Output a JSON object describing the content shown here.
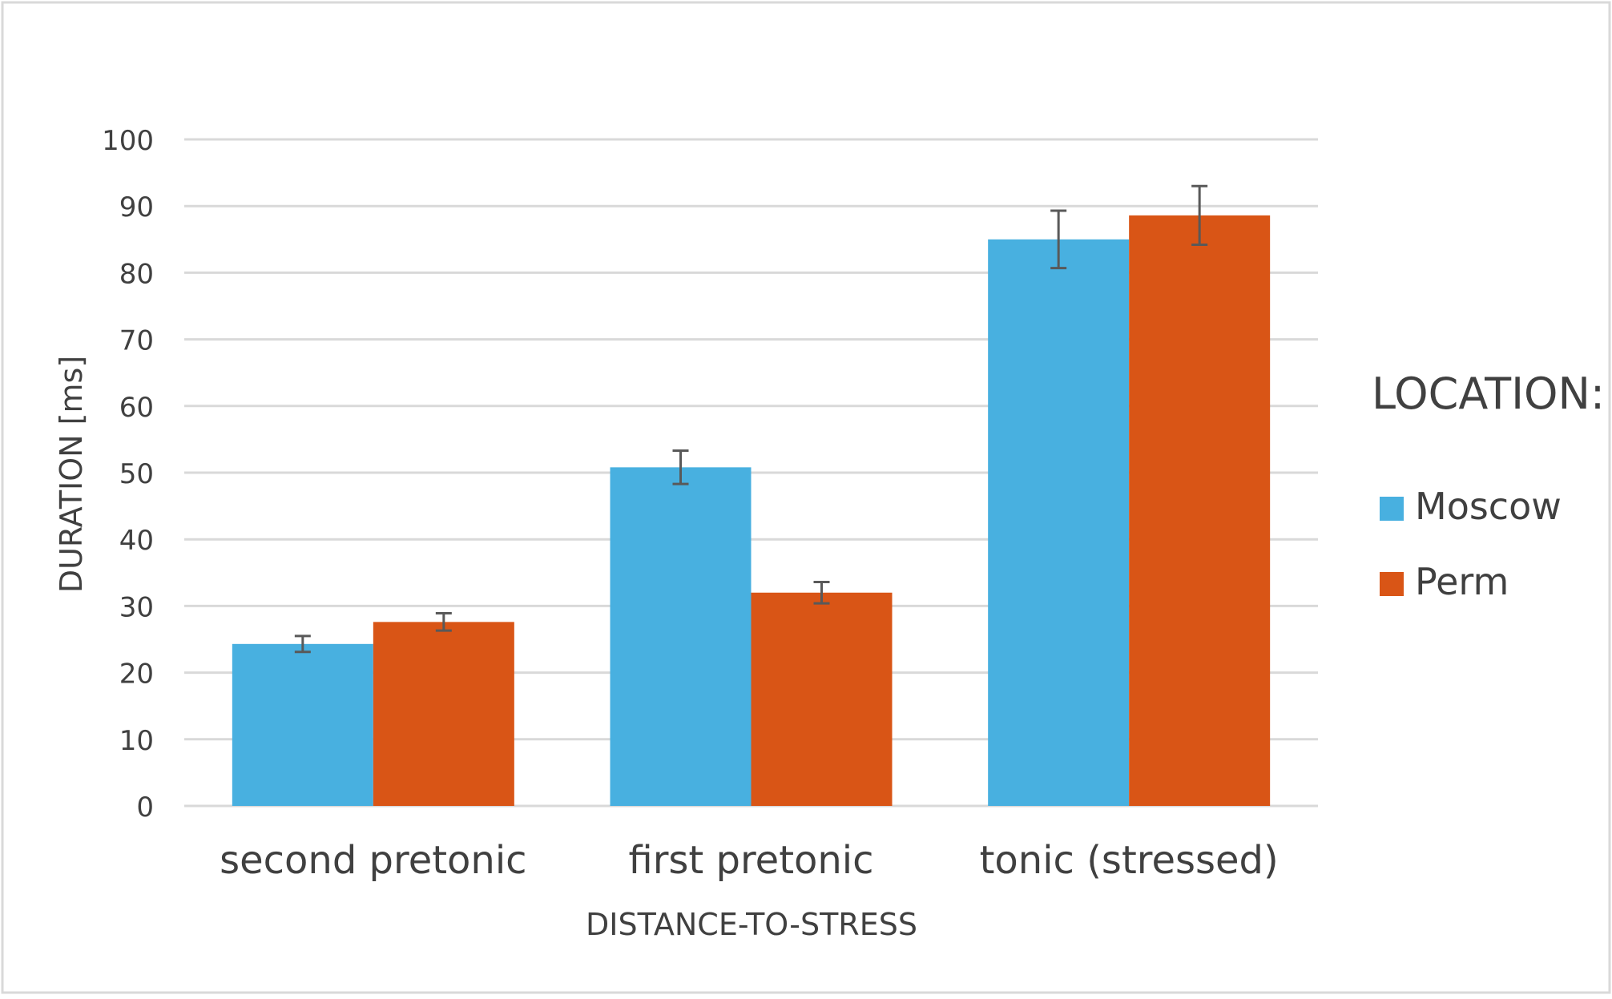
{
  "chart_data": {
    "type": "bar",
    "xlabel": "DISTANCE-TO-STRESS",
    "ylabel": "DURATION [ms]",
    "ylim": [
      0,
      100
    ],
    "yticks": [
      0,
      10,
      20,
      30,
      40,
      50,
      60,
      70,
      80,
      90,
      100
    ],
    "categories": [
      "second pretonic",
      "first pretonic",
      "tonic (stressed)"
    ],
    "grid": true,
    "legend": {
      "title": "LOCATION:",
      "position": "right"
    },
    "series": [
      {
        "name": "Moscow",
        "color": "#48b0e0",
        "values": [
          24.3,
          50.8,
          85.0
        ],
        "error": [
          1.2,
          2.5,
          4.3
        ]
      },
      {
        "name": "Perm",
        "color": "#d95516",
        "values": [
          27.6,
          32.0,
          88.6
        ],
        "error": [
          1.3,
          1.6,
          4.4
        ]
      }
    ]
  }
}
